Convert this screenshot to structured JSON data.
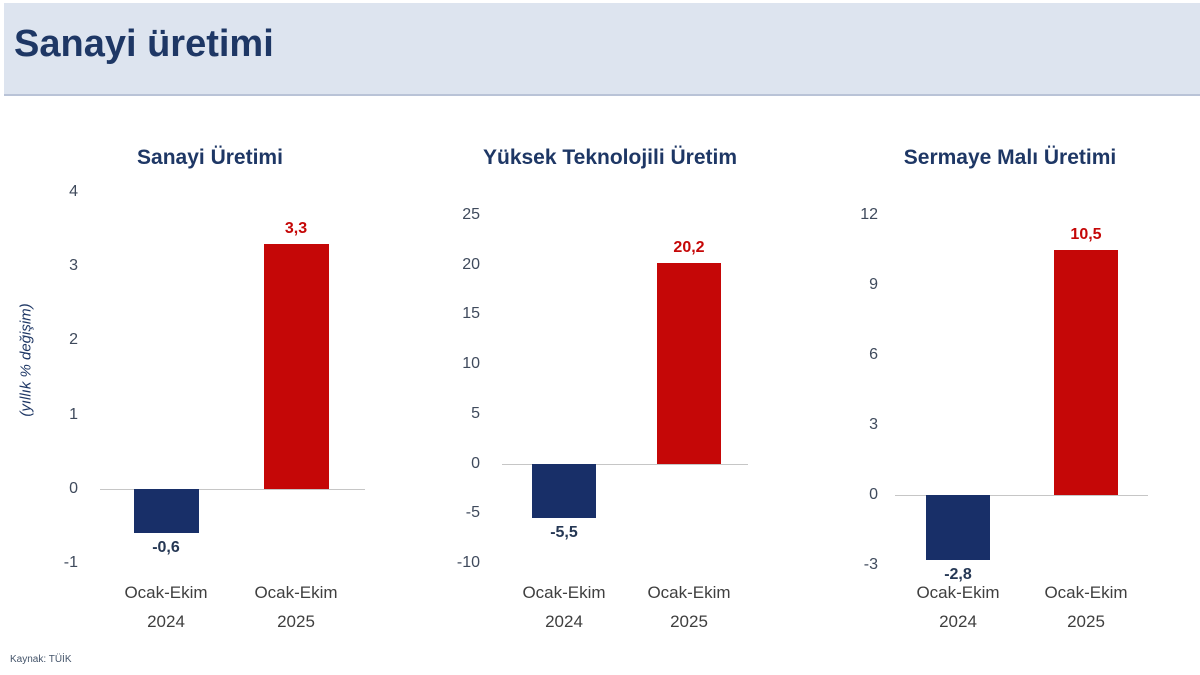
{
  "header": {
    "title": "Sanayi üretimi"
  },
  "footer": {
    "source": "Kaynak: TÜİK"
  },
  "colors": {
    "navy": "#182f68",
    "red": "#c50707",
    "header_bg": "#dde4ef",
    "header_border": "#b9c3d7",
    "title_text": "#1e3765",
    "tick_text": "#3f4a5c",
    "axis_line": "#c6c6c6",
    "negative_label": "#253754",
    "source_text": "#44546a"
  },
  "chart_data": [
    {
      "type": "bar",
      "title": "Sanayi Üretimi",
      "ylabel": "(yıllık % değişim)",
      "xlabel": "",
      "categories": [
        "Ocak-Ekim\n2024",
        "Ocak-Ekim\n2025"
      ],
      "values": [
        -0.6,
        3.3
      ],
      "value_labels": [
        "-0,6",
        "3,3"
      ],
      "bar_colors": [
        "#182f68",
        "#c50707"
      ],
      "label_colors": [
        "#253754",
        "#c50707"
      ],
      "ylim": [
        -1,
        4
      ],
      "yticks": [
        4,
        3,
        2,
        1,
        0,
        -1
      ],
      "ytick_labels": [
        "4",
        "3",
        "2",
        "1",
        "0",
        "-1"
      ],
      "grid": false,
      "legend": false
    },
    {
      "type": "bar",
      "title": "Yüksek Teknolojili Üretim",
      "ylabel": "",
      "xlabel": "",
      "categories": [
        "Ocak-Ekim\n2024",
        "Ocak-Ekim\n2025"
      ],
      "values": [
        -5.5,
        20.2
      ],
      "value_labels": [
        "-5,5",
        "20,2"
      ],
      "bar_colors": [
        "#182f68",
        "#c50707"
      ],
      "label_colors": [
        "#253754",
        "#c50707"
      ],
      "ylim": [
        -10,
        25
      ],
      "yticks": [
        25,
        20,
        15,
        10,
        5,
        0,
        -5,
        -10
      ],
      "ytick_labels": [
        "25",
        "20",
        "15",
        "10",
        "5",
        "0",
        "-5",
        "-10"
      ],
      "grid": false,
      "legend": false
    },
    {
      "type": "bar",
      "title": "Sermaye Malı Üretimi",
      "ylabel": "",
      "xlabel": "",
      "categories": [
        "Ocak-Ekim\n2024",
        "Ocak-Ekim\n2025"
      ],
      "values": [
        -2.8,
        10.5
      ],
      "value_labels": [
        "-2,8",
        "10,5"
      ],
      "bar_colors": [
        "#182f68",
        "#c50707"
      ],
      "label_colors": [
        "#253754",
        "#c50707"
      ],
      "ylim": [
        -3,
        12
      ],
      "yticks": [
        12,
        9,
        6,
        3,
        0,
        -3
      ],
      "ytick_labels": [
        "12",
        "9",
        "6",
        "3",
        "0",
        "-3"
      ],
      "grid": false,
      "legend": false
    }
  ]
}
